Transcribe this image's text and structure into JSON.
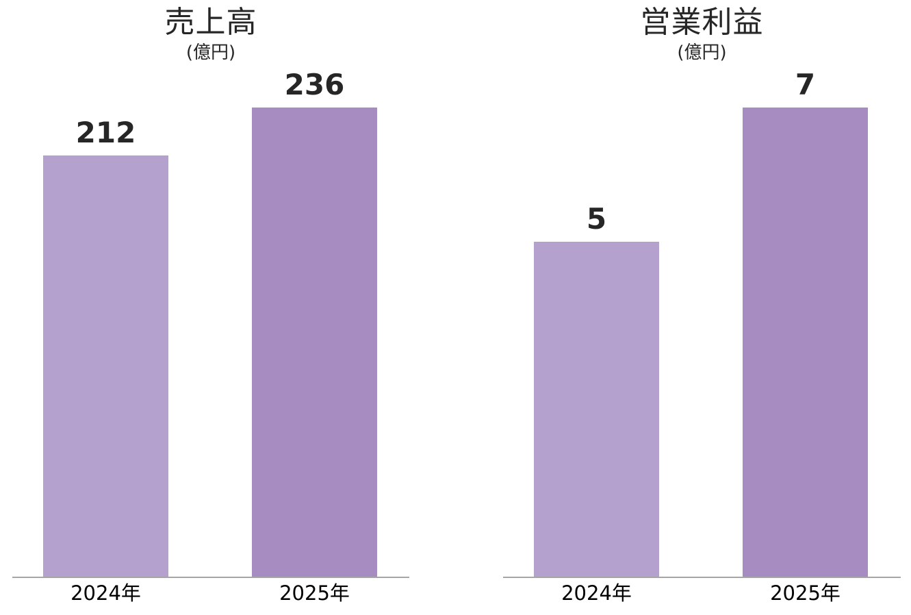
{
  "chart_data": [
    {
      "type": "bar",
      "title": "売上高",
      "unit": "(億円)",
      "categories": [
        "2024年",
        "2025年"
      ],
      "values": [
        212,
        236
      ],
      "data_labels": [
        "212",
        "236"
      ],
      "xlabel": "",
      "ylabel": "",
      "ylim": [
        0,
        236
      ],
      "grid": false,
      "legend": false,
      "bar_colors": [
        "#B4A1CD",
        "#A78CC2"
      ]
    },
    {
      "type": "bar",
      "title": "営業利益",
      "unit": "(億円)",
      "categories": [
        "2024年",
        "2025年"
      ],
      "values": [
        5,
        7
      ],
      "data_labels": [
        "5",
        "7"
      ],
      "xlabel": "",
      "ylabel": "",
      "ylim": [
        0,
        7
      ],
      "grid": false,
      "legend": false,
      "bar_colors": [
        "#B4A1CD",
        "#A78CC2"
      ]
    }
  ],
  "colors": {
    "bar_year_2024": "#B4A1CD",
    "bar_year_2025": "#A78CC2",
    "text": "#262626",
    "axis_line": "#A6A6A6",
    "background": "#FFFFFF"
  }
}
